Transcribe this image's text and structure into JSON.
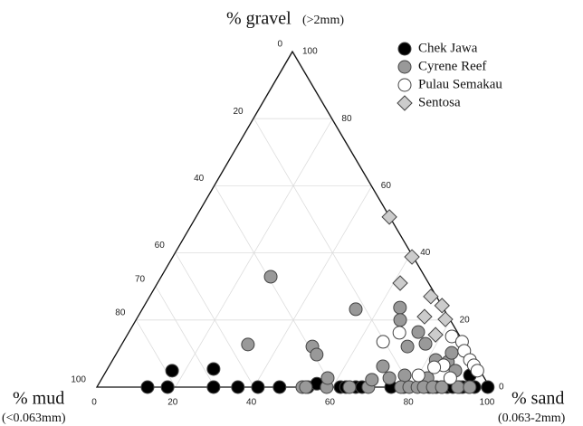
{
  "chart_data": {
    "type": "ternary",
    "axes": {
      "top": {
        "title": "% gravel",
        "unit": "(>2mm)",
        "ticks": [
          0,
          20,
          40,
          60,
          80,
          100
        ]
      },
      "left": {
        "title": "% mud",
        "unit": "(<0.063mm)",
        "ticks": [
          0,
          20,
          40,
          60,
          70,
          80,
          100
        ]
      },
      "right": {
        "title": "% sand",
        "unit": "(0.063-2mm)",
        "ticks": [
          0,
          20,
          40,
          60,
          80,
          100
        ]
      }
    },
    "grid": true,
    "legend": "top-right",
    "series": [
      {
        "name": "Chek Jawa",
        "marker": "circle",
        "color": "#000000",
        "sand": [
          12.9,
          18,
          29.7,
          35.9,
          41,
          46.5,
          53.7,
          62,
          63.4,
          65.9,
          67.5,
          74.9,
          78.1,
          84.6,
          86.4,
          87.8,
          89.2,
          90.6,
          92.2,
          93.1,
          94.7,
          96.1,
          99.5,
          16.7,
          27,
          93.2,
          55.5
        ],
        "gravel": [
          0,
          0,
          0,
          0,
          0,
          0,
          0,
          0,
          0,
          0,
          0,
          0,
          0,
          0,
          0,
          0,
          0,
          0,
          0,
          0,
          0,
          0,
          0,
          4.9,
          5.4,
          3.5,
          1
        ]
      },
      {
        "name": "Cyrene Reef",
        "marker": "circle",
        "color": "#999999",
        "sand": [
          27.8,
          54.3,
          32.1,
          48.8,
          51.1,
          65.3,
          67.2,
          73,
          73.6,
          77.2,
          82.2,
          85.6,
          85.2,
          88.8,
          69.7,
          73.1,
          76.6,
          82.8,
          52.3,
          53.2,
          58.5,
          64.3,
          69.1,
          77.4,
          79.5,
          81.6,
          83.2,
          85.5,
          87.8,
          91.9,
          94.9,
          57.4,
          68.9
        ],
        "gravel": [
          32.9,
          23.2,
          12.7,
          12.1,
          9.7,
          23.7,
          20,
          12.1,
          16.4,
          12.9,
          8.1,
          7.5,
          10.2,
          4.9,
          6.2,
          2.7,
          3.5,
          2.7,
          0,
          0,
          0,
          0,
          0,
          0,
          0,
          0,
          0,
          0,
          0,
          0,
          0,
          2.7,
          2.2
        ]
      },
      {
        "name": "Pulau Semakau",
        "marker": "circle",
        "color": "#ffffff",
        "sand": [
          66.1,
          68.9,
          82.8,
          86.2,
          88.1,
          90.9,
          92.7,
          94.4,
          80.1,
          88.6,
          85,
          82.9
        ],
        "gravel": [
          13.5,
          16.2,
          15.1,
          13.5,
          10.8,
          8.1,
          6.5,
          4.9,
          3.5,
          2.7,
          6.5,
          5.9
        ]
      },
      {
        "name": "Sentosa",
        "marker": "diamond",
        "color": "#cccccc",
        "sand": [
          49.1,
          60.8,
          61.7,
          71.5,
          75.7,
          72.9,
          78.6,
          78.4
        ],
        "gravel": [
          50.7,
          38.8,
          31,
          27,
          24.3,
          21,
          20.2,
          15.6
        ]
      }
    ]
  }
}
